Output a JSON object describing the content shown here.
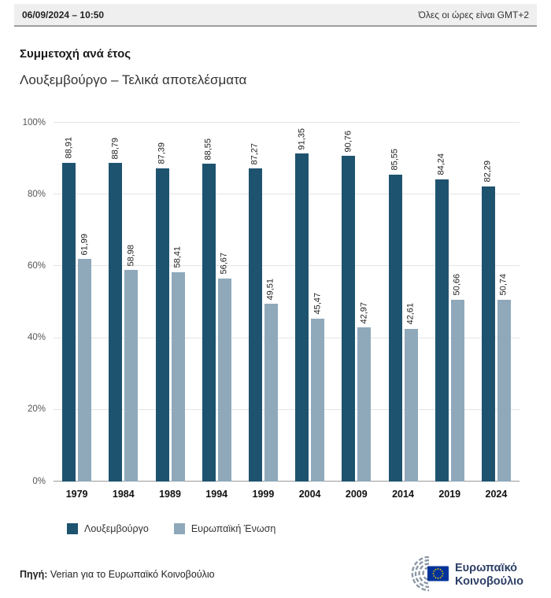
{
  "header": {
    "datetime": "06/09/2024 – 10:50",
    "timezone_note": "Όλες οι ώρες είναι GMT+2"
  },
  "title": "Συμμετοχή ανά έτος",
  "subtitle": "Λουξεμβούργο – Τελικά αποτελέσματα",
  "chart_data": {
    "type": "bar",
    "categories": [
      "1979",
      "1984",
      "1989",
      "1994",
      "1999",
      "2004",
      "2009",
      "2014",
      "2019",
      "2024"
    ],
    "series": [
      {
        "name": "Λουξεμβούργο",
        "color": "#1e536f",
        "values": [
          88.91,
          88.79,
          87.39,
          88.55,
          87.27,
          91.35,
          90.76,
          85.55,
          84.24,
          82.29
        ],
        "labels": [
          "88,91",
          "88,79",
          "87,39",
          "88,55",
          "87,27",
          "91,35",
          "90,76",
          "85,55",
          "84,24",
          "82,29"
        ]
      },
      {
        "name": "Ευρωπαϊκή Ένωση",
        "color": "#8fa9bb",
        "values": [
          61.99,
          58.98,
          58.41,
          56.67,
          49.51,
          45.47,
          42.97,
          42.61,
          50.66,
          50.74
        ],
        "labels": [
          "61,99",
          "58,98",
          "58,41",
          "56,67",
          "49,51",
          "45,47",
          "42,97",
          "42,61",
          "50,66",
          "50,74"
        ]
      }
    ],
    "ylim": [
      0,
      100
    ],
    "yticks": [
      "0%",
      "20%",
      "40%",
      "60%",
      "80%",
      "100%"
    ],
    "grid": true,
    "legend_position": "bottom-left",
    "value_label_orientation": "vertical"
  },
  "legend": [
    {
      "label": "Λουξεμβούργο",
      "color": "#1e536f"
    },
    {
      "label": "Ευρωπαϊκή Ένωση",
      "color": "#8fa9bb"
    }
  ],
  "footer": {
    "source_label": "Πηγή:",
    "source_text": " Verian για το Ευρωπαϊκό Κοινοβούλιο",
    "logo": {
      "line1": "Ευρωπαϊκό",
      "line2": "Κοινοβούλιο",
      "flag_blue": "#003399",
      "star_yellow": "#ffcc00",
      "text_color": "#2d3f66",
      "arc_color": "#8b98a5"
    }
  }
}
